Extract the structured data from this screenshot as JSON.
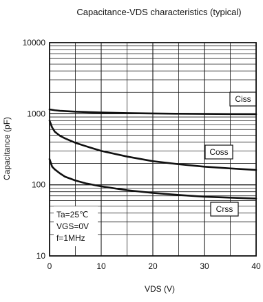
{
  "chart_data": {
    "type": "line",
    "title": "Capacitance-VDS characteristics (typical)",
    "xlabel": "VDS (V)",
    "ylabel": "Capacitance (pF)",
    "xlim": [
      0,
      40
    ],
    "ylim": [
      10,
      10000
    ],
    "yscale": "log",
    "grid": true,
    "x_ticks": [
      0,
      10,
      20,
      30,
      40
    ],
    "y_ticks": [
      10,
      100,
      1000,
      10000
    ],
    "series": [
      {
        "name": "Ciss",
        "x": [
          0,
          1,
          2,
          5,
          10,
          15,
          20,
          25,
          30,
          35,
          40
        ],
        "y": [
          1150,
          1120,
          1100,
          1070,
          1040,
          1020,
          1010,
          1000,
          995,
          990,
          985
        ]
      },
      {
        "name": "Coss",
        "x": [
          0,
          0.5,
          1,
          2,
          3,
          5,
          7,
          10,
          15,
          20,
          25,
          30,
          35,
          40
        ],
        "y": [
          800,
          640,
          560,
          490,
          450,
          390,
          350,
          300,
          250,
          215,
          195,
          180,
          170,
          162
        ]
      },
      {
        "name": "Crss",
        "x": [
          0,
          0.5,
          1,
          2,
          3,
          5,
          7,
          10,
          15,
          20,
          25,
          30,
          35,
          40
        ],
        "y": [
          230,
          180,
          165,
          145,
          130,
          115,
          105,
          95,
          84,
          77,
          72,
          68,
          66,
          64
        ]
      }
    ],
    "annotations": [
      "Ta=25℃",
      "VGS=0V",
      "f=1MHz"
    ]
  }
}
